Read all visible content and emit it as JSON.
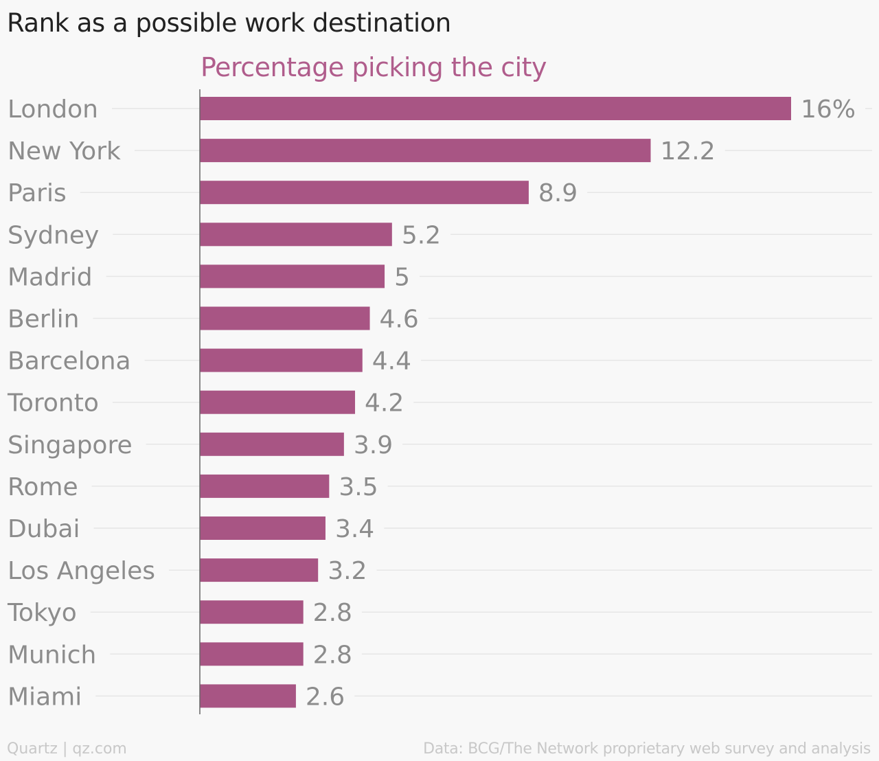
{
  "title": "Rank as a possible work destination",
  "footer": {
    "source_left": "Quartz | qz.com",
    "source_right": "Data: BCG/The Network proprietary web survey and analysis"
  },
  "colors": {
    "bar": "#a85584",
    "subtitle": "#b05d8c",
    "label": "#8c8c8c",
    "gridline": "#e6e6e6",
    "axis": "#666666",
    "background": "#f8f8f8"
  },
  "chart_data": {
    "type": "bar",
    "orientation": "horizontal",
    "subtitle": "Percentage picking the city",
    "categories": [
      "London",
      "New York",
      "Paris",
      "Sydney",
      "Madrid",
      "Berlin",
      "Barcelona",
      "Toronto",
      "Singapore",
      "Rome",
      "Dubai",
      "Los Angeles",
      "Tokyo",
      "Munich",
      "Miami"
    ],
    "values": [
      16,
      12.2,
      8.9,
      5.2,
      5,
      4.6,
      4.4,
      4.2,
      3.9,
      3.5,
      3.4,
      3.2,
      2.8,
      2.8,
      2.6
    ],
    "value_labels": [
      "16%",
      "12.2",
      "8.9",
      "5.2",
      "5",
      "4.6",
      "4.4",
      "4.2",
      "3.9",
      "3.5",
      "3.4",
      "3.2",
      "2.8",
      "2.8",
      "2.6"
    ],
    "xlim": [
      0,
      16
    ],
    "grid": true,
    "legend": "none"
  }
}
